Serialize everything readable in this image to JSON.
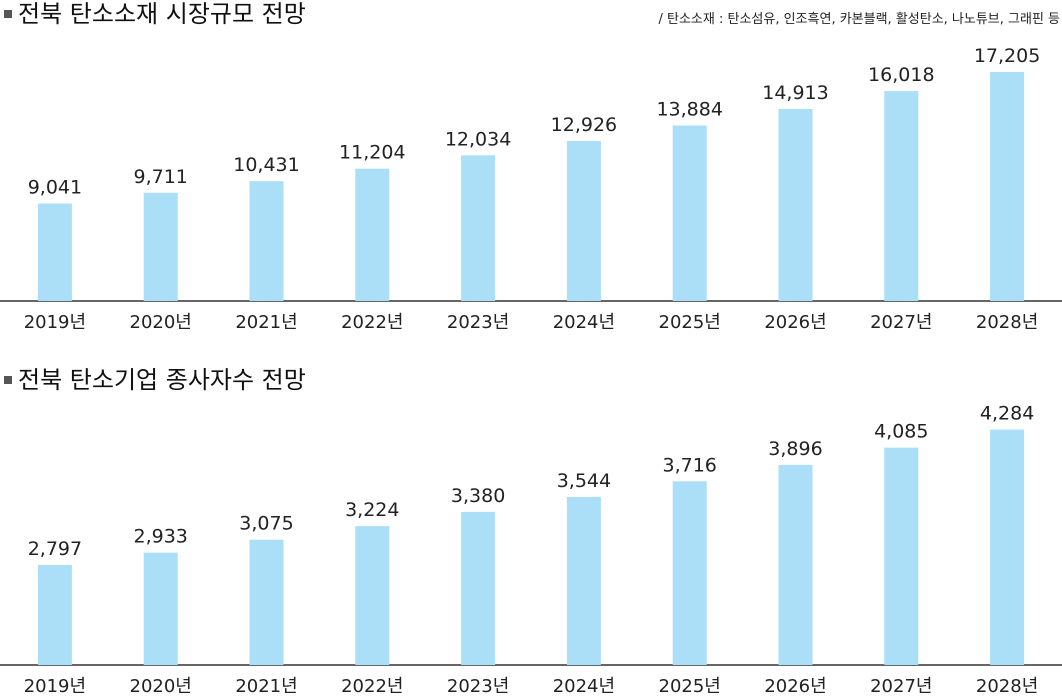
{
  "chart_data": [
    {
      "type": "bar",
      "title": "전북 탄소소재 시장규모 전망",
      "note": "/ 탄소소재 : 탄소섬유, 인조흑연, 카본블랙, 활성탄소, 나노튜브, 그래핀 등",
      "categories": [
        "2019년",
        "2020년",
        "2021년",
        "2022년",
        "2023년",
        "2024년",
        "2025년",
        "2026년",
        "2027년",
        "2028년"
      ],
      "values": [
        9041,
        9711,
        10431,
        11204,
        12034,
        12926,
        13884,
        14913,
        16018,
        17205
      ],
      "value_labels": [
        "9,041",
        "9,711",
        "10,431",
        "11,204",
        "12,034",
        "12,926",
        "13,884",
        "14,913",
        "16,018",
        "17,205"
      ],
      "ylim": [
        3000,
        17700
      ],
      "color": "#aadff7"
    },
    {
      "type": "bar",
      "title": "전북 탄소기업 종사자수 전망",
      "categories": [
        "2019년",
        "2020년",
        "2021년",
        "2022년",
        "2023년",
        "2024년",
        "2025년",
        "2026년",
        "2027년",
        "2028년"
      ],
      "values": [
        2797,
        2933,
        3075,
        3224,
        3380,
        3544,
        3716,
        3896,
        4085,
        4284
      ],
      "value_labels": [
        "2,797",
        "2,933",
        "3,075",
        "3,224",
        "3,380",
        "3,544",
        "3,716",
        "3,896",
        "4,085",
        "4,284"
      ],
      "ylim": [
        1700,
        4290
      ],
      "color": "#aadff7"
    }
  ]
}
